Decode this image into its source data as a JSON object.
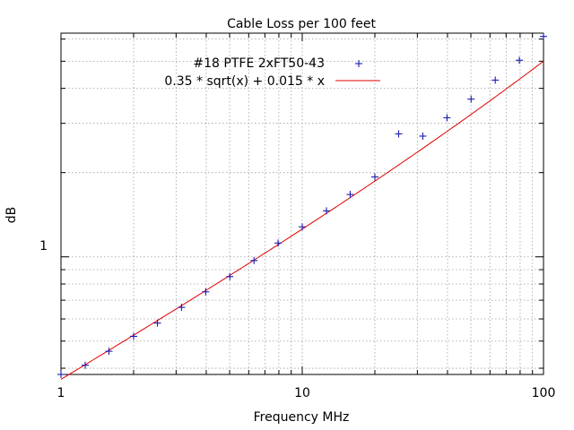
{
  "chart_data": {
    "type": "scatter",
    "title": "Cable Loss per 100 feet",
    "xlabel": "Frequency MHz",
    "ylabel": "dB",
    "xscale": "log",
    "yscale": "log",
    "xlim": [
      1,
      100
    ],
    "ylim": [
      0.38,
      6.3
    ],
    "grid": true,
    "legend_position": "top-center",
    "x_tick_labels": [
      "1",
      "10",
      "100"
    ],
    "y_tick_labels": [
      "1"
    ],
    "series": [
      {
        "name": "#18 PTFE 2xFT50-43",
        "marker": "+",
        "color": "#1a1ab4",
        "x": [
          1,
          1.26,
          1.58,
          2,
          2.51,
          3.16,
          3.98,
          5.01,
          6.31,
          7.94,
          10,
          12.6,
          15.8,
          20,
          25.1,
          31.6,
          39.8,
          50.1,
          63.1,
          79.4,
          100
        ],
        "y": [
          0.38,
          0.41,
          0.46,
          0.52,
          0.58,
          0.66,
          0.75,
          0.85,
          0.97,
          1.12,
          1.28,
          1.46,
          1.67,
          1.93,
          2.75,
          2.7,
          3.14,
          3.66,
          4.28,
          5.04,
          6.13
        ]
      },
      {
        "name": "0.35 * sqrt(x) + 0.015 * x",
        "type": "line",
        "color": "#e00000",
        "function": "0.35 * sqrt(x) + 0.015 * x"
      }
    ]
  }
}
